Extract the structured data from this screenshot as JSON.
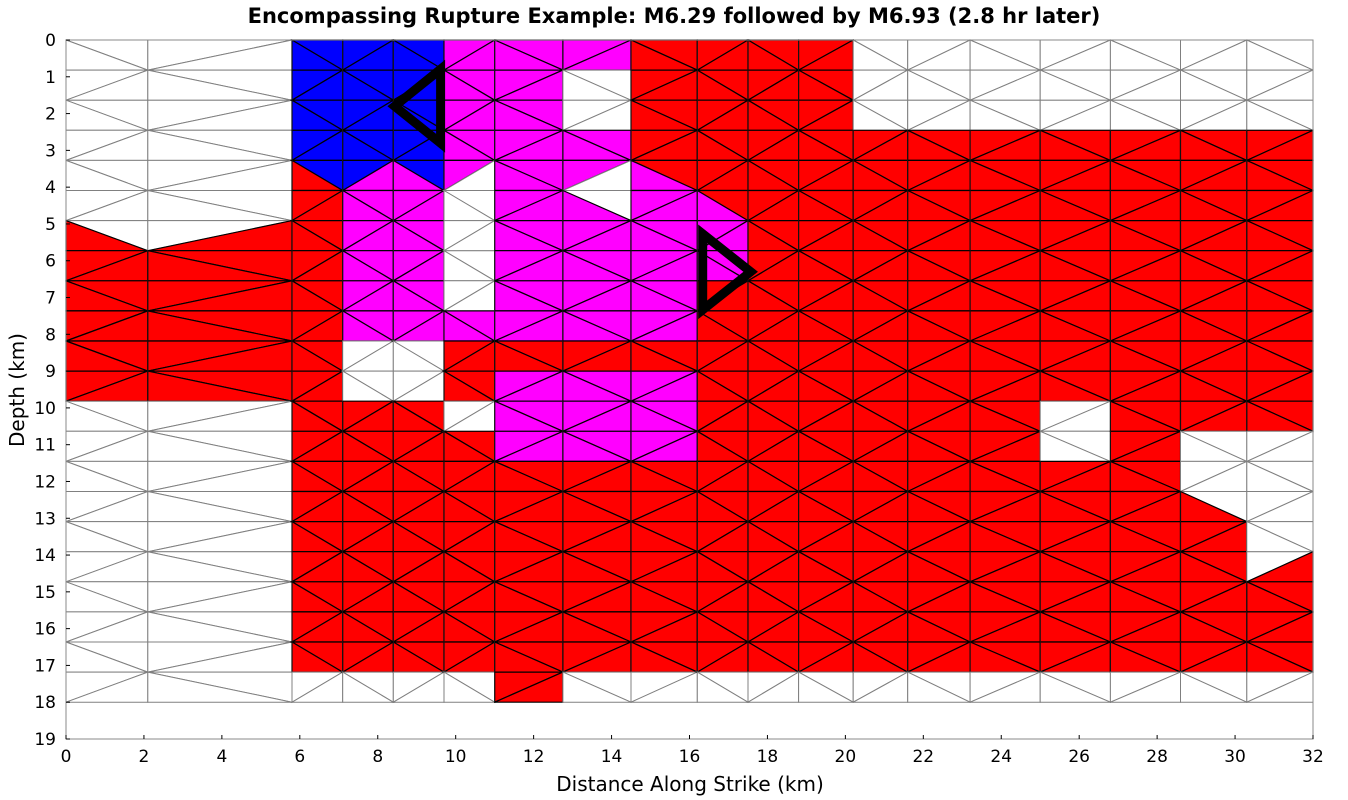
{
  "chart_data": {
    "type": "heatmap",
    "title": "Encompassing Rupture Example: M6.29 followed by M6.93 (2.8 hr later)",
    "xlabel": "Distance Along Strike (km)",
    "ylabel": "Depth (km)",
    "xlim": [
      0,
      32
    ],
    "ylim": [
      19,
      0
    ],
    "x_ticks": [
      "0",
      "2",
      "4",
      "6",
      "8",
      "10",
      "12",
      "14",
      "16",
      "18",
      "20",
      "22",
      "24",
      "26",
      "28",
      "30",
      "32"
    ],
    "y_ticks": [
      "0",
      "1",
      "2",
      "3",
      "4",
      "5",
      "6",
      "7",
      "8",
      "9",
      "10",
      "11",
      "12",
      "13",
      "14",
      "15",
      "16",
      "17",
      "18",
      "19"
    ],
    "mesh": {
      "columns_km": [
        0,
        2.1,
        5.8,
        7.1,
        8.4,
        9.7,
        11.0,
        12.75,
        14.5,
        16.2,
        17.5,
        18.8,
        20.2,
        21.6,
        23.2,
        25.0,
        26.8,
        28.6,
        30.3,
        32.0
      ],
      "depth_range_km": [
        0,
        18
      ],
      "rows": 22
    },
    "colors": {
      "event1": "#0000ff",
      "overlap": "#ff00ff",
      "event2": "#ff0000",
      "unruptured": "#ffffff",
      "mesh_line": "#808080",
      "rupture_edge": "#000000",
      "hypocenter": "#000000"
    },
    "hypocenters": [
      {
        "x": 9.1,
        "depth": 1.8
      },
      {
        "x": 16.8,
        "depth": 6.3
      }
    ],
    "rupture_zones": {
      "event1_only": [
        {
          "x": [
            5.8,
            9.7
          ],
          "depth": [
            0,
            3.6
          ]
        }
      ],
      "overlap": [
        {
          "x": [
            9.7,
            14.5
          ],
          "depth": [
            0,
            3.6
          ]
        },
        {
          "x": [
            7.1,
            9.7
          ],
          "depth": [
            2.7,
            8.1
          ]
        },
        {
          "x": [
            9.7,
            16.2
          ],
          "depth": [
            3.6,
            8.1
          ]
        },
        {
          "x": [
            16.2,
            17.5
          ],
          "depth": [
            4.5,
            6.3
          ]
        },
        {
          "x": [
            11.0,
            16.2
          ],
          "depth": [
            9.0,
            11.7
          ]
        }
      ],
      "event2": [
        {
          "x": [
            0,
            5.8
          ],
          "depth": [
            5.4,
            9.9
          ]
        },
        {
          "x": [
            5.8,
            32.0
          ],
          "depth": [
            0,
            17.1
          ]
        },
        {
          "x": [
            11.0,
            14.5
          ],
          "depth": [
            17.1,
            18.0
          ]
        }
      ],
      "unruptured_gaps": [
        {
          "x": [
            12.75,
            14.5
          ],
          "depth": [
            0.9,
            2.7
          ]
        },
        {
          "x": [
            12.75,
            14.5
          ],
          "depth": [
            3.6,
            4.5
          ]
        },
        {
          "x": [
            9.7,
            11.0
          ],
          "depth": [
            3.6,
            7.2
          ]
        },
        {
          "x": [
            7.1,
            9.7
          ],
          "depth": [
            8.1,
            9.9
          ]
        },
        {
          "x": [
            9.7,
            11.0
          ],
          "depth": [
            9.9,
            10.8
          ]
        },
        {
          "x": [
            20.2,
            32.0
          ],
          "depth": [
            0,
            2.7
          ]
        },
        {
          "x": [
            25.0,
            26.8
          ],
          "depth": [
            9.9,
            11.7
          ]
        },
        {
          "x": [
            28.6,
            30.3
          ],
          "depth": [
            10.8,
            12.6
          ]
        },
        {
          "x": [
            30.3,
            32.0
          ],
          "depth": [
            10.8,
            14.4
          ]
        },
        {
          "x": [
            12.75,
            14.5
          ],
          "depth": [
            17.1,
            18.0
          ]
        }
      ]
    }
  }
}
